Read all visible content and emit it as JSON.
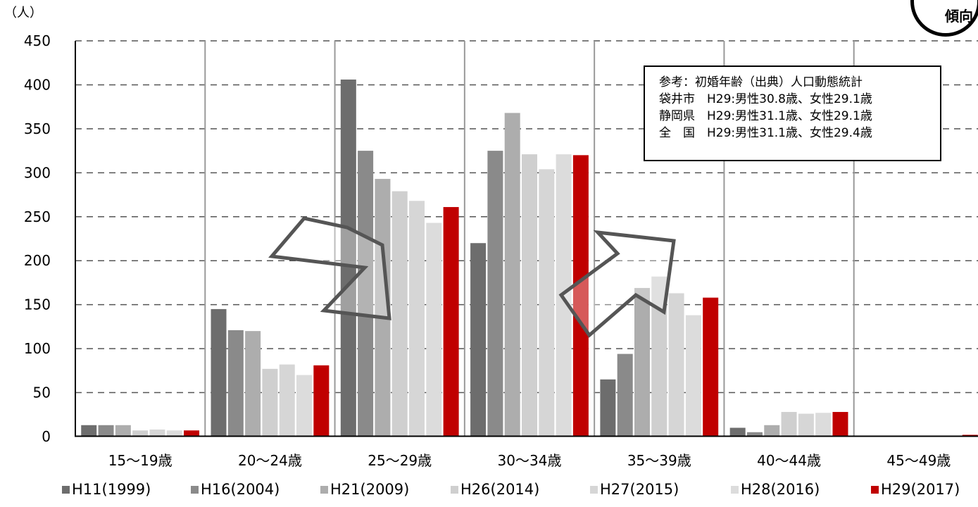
{
  "chart_data": {
    "type": "bar",
    "unit_label": "（人）",
    "ylim": [
      0,
      450
    ],
    "yticks": [
      "0",
      "50",
      "100",
      "150",
      "200",
      "250",
      "300",
      "350",
      "400",
      "450"
    ],
    "categories": [
      "15～19歳",
      "20～24歳",
      "25～29歳",
      "30～34歳",
      "35～39歳",
      "40～44歳",
      "45～49歳"
    ],
    "series": [
      {
        "name": "H11(1999)",
        "color": "#6d6d6d",
        "values": [
          13,
          145,
          406,
          220,
          65,
          10,
          0
        ]
      },
      {
        "name": "H16(2004)",
        "color": "#8a8a8a",
        "values": [
          13,
          121,
          325,
          325,
          94,
          5,
          0
        ]
      },
      {
        "name": "H21(2009)",
        "color": "#adadad",
        "values": [
          13,
          120,
          293,
          368,
          169,
          13,
          0
        ]
      },
      {
        "name": "H26(2014)",
        "color": "#cfcfcf",
        "values": [
          7,
          77,
          279,
          321,
          182,
          28,
          0
        ]
      },
      {
        "name": "H27(2015)",
        "color": "#d6d6d6",
        "values": [
          8,
          82,
          268,
          304,
          163,
          26,
          0
        ]
      },
      {
        "name": "H28(2016)",
        "color": "#dcdcdc",
        "values": [
          7,
          70,
          243,
          321,
          138,
          27,
          0
        ]
      },
      {
        "name": "H29(2017)",
        "color": "#c00000",
        "values": [
          7,
          81,
          261,
          320,
          158,
          28,
          2
        ]
      }
    ],
    "grid": true,
    "legend_position": "bottom",
    "annotations": {
      "reference_lines": [
        "参考：初婚年齢（出典）人口動態統計",
        "袋井市　H29:男性30.8歳、女性29.1歳",
        "静岡県　H29:男性31.1歳、女性29.1歳",
        "全　国　H29:男性31.1歳、女性29.4歳"
      ],
      "badge_text": "傾向"
    }
  }
}
